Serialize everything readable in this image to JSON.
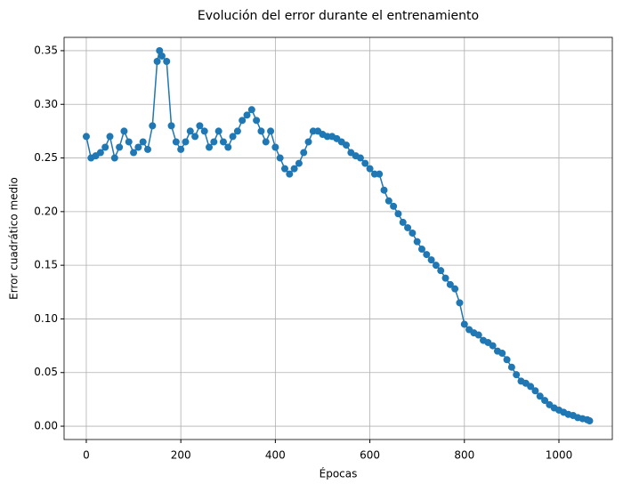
{
  "chart_data": {
    "type": "line",
    "title": "Evolución del error durante el entrenamiento",
    "x_label": "Épocas",
    "y_label": "Error cuadrático medio",
    "x": [
      0,
      10,
      20,
      30,
      40,
      50,
      60,
      70,
      80,
      90,
      100,
      110,
      120,
      130,
      140,
      150,
      155,
      160,
      170,
      180,
      190,
      200,
      210,
      220,
      230,
      240,
      250,
      260,
      270,
      280,
      290,
      300,
      310,
      320,
      330,
      340,
      350,
      360,
      370,
      380,
      390,
      400,
      410,
      420,
      430,
      440,
      450,
      460,
      470,
      480,
      490,
      500,
      510,
      520,
      530,
      540,
      550,
      560,
      570,
      580,
      590,
      600,
      610,
      620,
      630,
      640,
      650,
      660,
      670,
      680,
      690,
      700,
      710,
      720,
      730,
      740,
      750,
      760,
      770,
      780,
      790,
      800,
      810,
      820,
      830,
      840,
      850,
      860,
      870,
      880,
      890,
      900,
      910,
      920,
      930,
      940,
      950,
      960,
      970,
      980,
      990,
      1000,
      1010,
      1020,
      1030,
      1040,
      1050,
      1060,
      1065
    ],
    "series": [
      {
        "name": "Error",
        "color": "#1f77b4",
        "values": [
          0.27,
          0.25,
          0.252,
          0.255,
          0.26,
          0.27,
          0.25,
          0.26,
          0.275,
          0.265,
          0.255,
          0.26,
          0.265,
          0.258,
          0.28,
          0.34,
          0.35,
          0.345,
          0.34,
          0.28,
          0.265,
          0.258,
          0.265,
          0.275,
          0.27,
          0.28,
          0.275,
          0.26,
          0.265,
          0.275,
          0.265,
          0.26,
          0.27,
          0.275,
          0.285,
          0.29,
          0.295,
          0.285,
          0.275,
          0.265,
          0.275,
          0.26,
          0.25,
          0.24,
          0.235,
          0.24,
          0.245,
          0.255,
          0.265,
          0.275,
          0.275,
          0.272,
          0.27,
          0.27,
          0.268,
          0.265,
          0.262,
          0.255,
          0.252,
          0.25,
          0.245,
          0.24,
          0.235,
          0.235,
          0.22,
          0.21,
          0.205,
          0.198,
          0.19,
          0.185,
          0.18,
          0.172,
          0.165,
          0.16,
          0.155,
          0.15,
          0.145,
          0.138,
          0.132,
          0.128,
          0.115,
          0.095,
          0.09,
          0.087,
          0.085,
          0.08,
          0.078,
          0.075,
          0.07,
          0.068,
          0.062,
          0.055,
          0.048,
          0.042,
          0.04,
          0.037,
          0.033,
          0.028,
          0.024,
          0.02,
          0.017,
          0.015,
          0.013,
          0.011,
          0.01,
          0.008,
          0.007,
          0.006,
          0.005
        ]
      }
    ],
    "xlim": [
      -47,
      1113
    ],
    "ylim": [
      -0.0124,
      0.3624
    ],
    "xticks": [
      0,
      200,
      400,
      600,
      800,
      1000
    ],
    "yticks": [
      {
        "value": 0,
        "label": "0.00"
      },
      {
        "value": 0.05,
        "label": "0.05"
      },
      {
        "value": 0.1,
        "label": "0.10"
      },
      {
        "value": 0.15,
        "label": "0.15"
      },
      {
        "value": 0.2,
        "label": "0.20"
      },
      {
        "value": 0.25,
        "label": "0.25"
      },
      {
        "value": 0.3,
        "label": "0.30"
      },
      {
        "value": 0.35,
        "label": "0.35"
      }
    ],
    "grid": true
  }
}
